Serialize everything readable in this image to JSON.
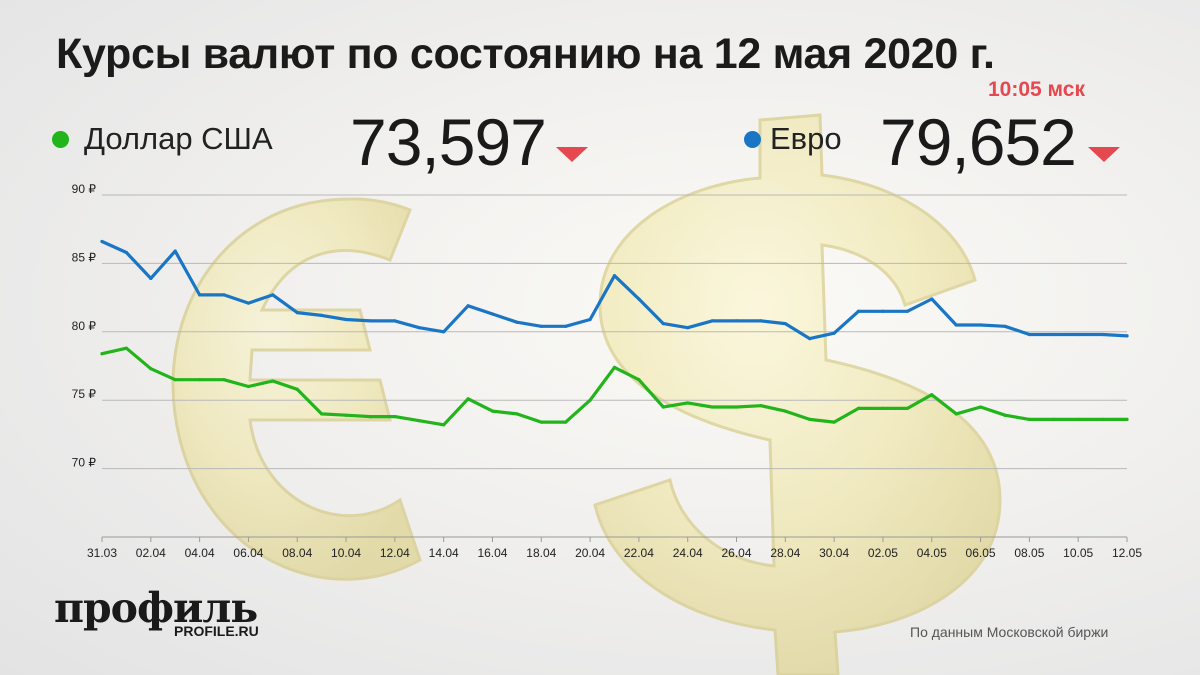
{
  "header": {
    "title": "Курсы валют по состоянию на 12 мая 2020 г.",
    "time": "10:05 мск"
  },
  "legend": {
    "usd": {
      "label": "Доллар США",
      "value": "73,597",
      "color": "#22b41b",
      "trend": "down"
    },
    "eur": {
      "label": "Евро",
      "value": "79,652",
      "color": "#1a76c5",
      "trend": "down"
    }
  },
  "brand": {
    "name": "профиль",
    "url": "PROFILE.RU"
  },
  "source": "По данным Московской биржи",
  "chart_data": {
    "type": "line",
    "title": "Курсы валют по состоянию на 12 мая 2020 г.",
    "xlabel": "",
    "ylabel": "",
    "ylim": [
      65,
      90
    ],
    "y_ticks": [
      {
        "value": 70,
        "label": "70 ₽"
      },
      {
        "value": 75,
        "label": "75 ₽"
      },
      {
        "value": 80,
        "label": "80 ₽"
      },
      {
        "value": 85,
        "label": "85 ₽"
      },
      {
        "value": 90,
        "label": "90 ₽"
      }
    ],
    "grid": "horizontal",
    "x": [
      "31.03",
      "01.04",
      "02.04",
      "03.04",
      "04.04",
      "05.04",
      "06.04",
      "07.04",
      "08.04",
      "09.04",
      "10.04",
      "11.04",
      "12.04",
      "13.04",
      "14.04",
      "15.04",
      "16.04",
      "17.04",
      "18.04",
      "19.04",
      "20.04",
      "21.04",
      "22.04",
      "23.04",
      "24.04",
      "25.04",
      "26.04",
      "27.04",
      "28.04",
      "29.04",
      "30.04",
      "01.05",
      "02.05",
      "03.05",
      "04.05",
      "05.05",
      "06.05",
      "07.05",
      "08.05",
      "09.05",
      "10.05",
      "11.05",
      "12.05"
    ],
    "x_tick_labels": [
      "31.03",
      "02.04",
      "04.04",
      "06.04",
      "08.04",
      "10.04",
      "12.04",
      "14.04",
      "16.04",
      "18.04",
      "20.04",
      "22.04",
      "24.04",
      "26.04",
      "28.04",
      "30.04",
      "02.05",
      "04.05",
      "06.05",
      "08.05",
      "10.05",
      "12.05"
    ],
    "series": [
      {
        "name": "Евро",
        "color": "#1a76c5",
        "values": [
          86.6,
          85.8,
          83.9,
          85.9,
          82.7,
          82.7,
          82.1,
          82.7,
          81.4,
          81.2,
          80.9,
          80.8,
          80.8,
          80.3,
          80.0,
          81.9,
          81.3,
          80.7,
          80.4,
          80.4,
          80.9,
          84.1,
          82.4,
          80.6,
          80.3,
          80.8,
          80.8,
          80.8,
          80.6,
          79.5,
          79.9,
          81.5,
          81.5,
          81.5,
          82.4,
          80.5,
          80.5,
          80.4,
          79.8,
          79.8,
          79.8,
          79.8,
          79.7
        ]
      },
      {
        "name": "Доллар США",
        "color": "#22b41b",
        "values": [
          78.4,
          78.8,
          77.3,
          76.5,
          76.5,
          76.5,
          76.0,
          76.4,
          75.8,
          74.0,
          73.9,
          73.8,
          73.8,
          73.5,
          73.2,
          75.1,
          74.2,
          74.0,
          73.4,
          73.4,
          75.0,
          77.4,
          76.5,
          74.5,
          74.8,
          74.5,
          74.5,
          74.6,
          74.2,
          73.6,
          73.4,
          74.4,
          74.4,
          74.4,
          75.4,
          74.0,
          74.5,
          73.9,
          73.6,
          73.6,
          73.6,
          73.6,
          73.6
        ]
      }
    ]
  }
}
